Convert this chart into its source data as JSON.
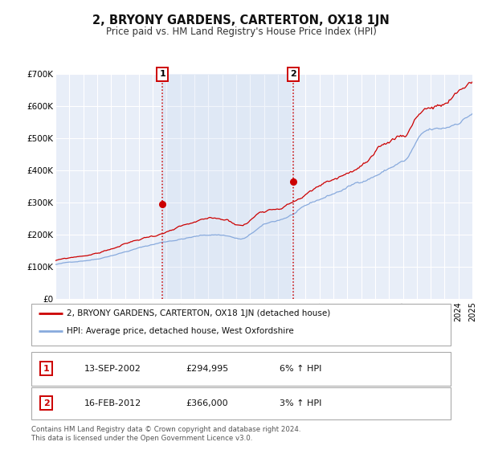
{
  "title": "2, BRYONY GARDENS, CARTERTON, OX18 1JN",
  "subtitle": "Price paid vs. HM Land Registry's House Price Index (HPI)",
  "background_color": "#ffffff",
  "plot_bg_color": "#e8eef8",
  "grid_color": "#ffffff",
  "sale1": {
    "date_x": 2002.71,
    "price": 294995,
    "label": "1",
    "date_str": "13-SEP-2002",
    "price_str": "£294,995",
    "hpi_str": "6% ↑ HPI"
  },
  "sale2": {
    "date_x": 2012.12,
    "price": 366000,
    "label": "2",
    "date_str": "16-FEB-2012",
    "price_str": "£366,000",
    "hpi_str": "3% ↑ HPI"
  },
  "shaded_region": [
    2002.71,
    2012.12
  ],
  "red_line_color": "#cc0000",
  "blue_line_color": "#88aadd",
  "marker_color": "#cc0000",
  "legend_label1": "2, BRYONY GARDENS, CARTERTON, OX18 1JN (detached house)",
  "legend_label2": "HPI: Average price, detached house, West Oxfordshire",
  "footer1": "Contains HM Land Registry data © Crown copyright and database right 2024.",
  "footer2": "This data is licensed under the Open Government Licence v3.0.",
  "ylim": [
    0,
    700000
  ],
  "xlim": [
    1995,
    2025
  ],
  "yticks": [
    0,
    100000,
    200000,
    300000,
    400000,
    500000,
    600000,
    700000
  ],
  "ytick_labels": [
    "£0",
    "£100K",
    "£200K",
    "£300K",
    "£400K",
    "£500K",
    "£600K",
    "£700K"
  ],
  "xticks": [
    1995,
    1996,
    1997,
    1998,
    1999,
    2000,
    2001,
    2002,
    2003,
    2004,
    2005,
    2006,
    2007,
    2008,
    2009,
    2010,
    2011,
    2012,
    2013,
    2014,
    2015,
    2016,
    2017,
    2018,
    2019,
    2020,
    2021,
    2022,
    2023,
    2024,
    2025
  ]
}
